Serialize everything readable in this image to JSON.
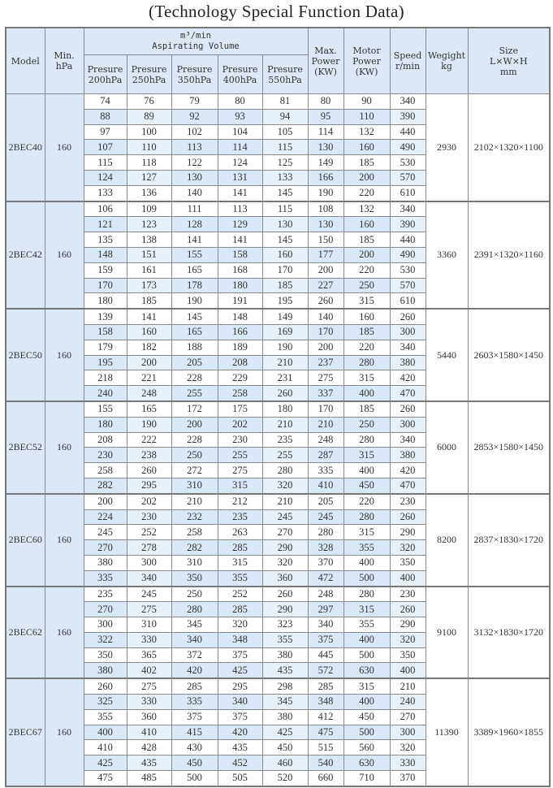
{
  "title": "(Technology Special Function Data)",
  "header": {
    "model": "Model",
    "min_hpa": [
      "Min.",
      "hPa"
    ],
    "volume_unit": "m³/min",
    "volume_label": "Aspirating Volume",
    "pressures": [
      [
        "Presure",
        "200hPa"
      ],
      [
        "Presure",
        "250hPa"
      ],
      [
        "Presure",
        "350hPa"
      ],
      [
        "Presure",
        "400hPa"
      ],
      [
        "Presure",
        "550hPa"
      ]
    ],
    "max_power": [
      "Max.",
      "Power",
      "(KW)"
    ],
    "motor_power": [
      "Motor",
      "Power",
      "(KW)"
    ],
    "speed": [
      "Speed",
      "r/min"
    ],
    "weight": [
      "Wegight",
      "kg"
    ],
    "size": [
      "Size",
      "L×W×H",
      "mm"
    ]
  },
  "colors": {
    "header_bg": "#dbe9f6",
    "row_shade": "#d8e8f6",
    "border": "#8a8a8a"
  },
  "groups": [
    {
      "model": "2BEC40",
      "min_hpa": "160",
      "weight": "2930",
      "size": "2102×1320×1100",
      "rows": [
        [
          "74",
          "76",
          "79",
          "80",
          "81",
          "80",
          "90",
          "340"
        ],
        [
          "88",
          "89",
          "92",
          "93",
          "94",
          "95",
          "110",
          "390"
        ],
        [
          "97",
          "100",
          "102",
          "104",
          "105",
          "114",
          "132",
          "440"
        ],
        [
          "107",
          "110",
          "113",
          "114",
          "115",
          "130",
          "160",
          "490"
        ],
        [
          "115",
          "118",
          "122",
          "124",
          "125",
          "149",
          "185",
          "530"
        ],
        [
          "124",
          "127",
          "130",
          "131",
          "133",
          "166",
          "200",
          "570"
        ],
        [
          "133",
          "136",
          "140",
          "141",
          "145",
          "190",
          "220",
          "610"
        ]
      ]
    },
    {
      "model": "2BEC42",
      "min_hpa": "160",
      "weight": "3360",
      "size": "2391×1320×1160",
      "rows": [
        [
          "106",
          "109",
          "111",
          "113",
          "115",
          "108",
          "132",
          "340"
        ],
        [
          "121",
          "123",
          "128",
          "129",
          "130",
          "130",
          "160",
          "390"
        ],
        [
          "135",
          "138",
          "141",
          "141",
          "145",
          "150",
          "185",
          "440"
        ],
        [
          "148",
          "151",
          "155",
          "158",
          "160",
          "177",
          "200",
          "490"
        ],
        [
          "159",
          "161",
          "165",
          "168",
          "170",
          "200",
          "220",
          "530"
        ],
        [
          "170",
          "173",
          "178",
          "180",
          "185",
          "227",
          "250",
          "570"
        ],
        [
          "180",
          "185",
          "190",
          "191",
          "195",
          "260",
          "315",
          "610"
        ]
      ]
    },
    {
      "model": "2BEC50",
      "min_hpa": "160",
      "weight": "5440",
      "size": "2603×1580×1450",
      "rows": [
        [
          "139",
          "141",
          "145",
          "148",
          "149",
          "140",
          "160",
          "260"
        ],
        [
          "158",
          "160",
          "165",
          "166",
          "169",
          "170",
          "185",
          "300"
        ],
        [
          "179",
          "182",
          "188",
          "189",
          "190",
          "200",
          "220",
          "340"
        ],
        [
          "195",
          "200",
          "205",
          "208",
          "210",
          "237",
          "280",
          "380"
        ],
        [
          "218",
          "221",
          "228",
          "229",
          "231",
          "275",
          "315",
          "420"
        ],
        [
          "240",
          "248",
          "255",
          "258",
          "260",
          "337",
          "400",
          "470"
        ]
      ]
    },
    {
      "model": "2BEC52",
      "min_hpa": "160",
      "weight": "6000",
      "size": "2853×1580×1450",
      "rows": [
        [
          "155",
          "165",
          "172",
          "175",
          "180",
          "170",
          "185",
          "260"
        ],
        [
          "180",
          "190",
          "200",
          "202",
          "210",
          "210",
          "250",
          "300"
        ],
        [
          "208",
          "222",
          "228",
          "230",
          "235",
          "248",
          "280",
          "340"
        ],
        [
          "230",
          "238",
          "250",
          "255",
          "255",
          "287",
          "315",
          "380"
        ],
        [
          "258",
          "260",
          "272",
          "275",
          "280",
          "335",
          "400",
          "420"
        ],
        [
          "282",
          "295",
          "310",
          "315",
          "320",
          "410",
          "450",
          "470"
        ]
      ]
    },
    {
      "model": "2BEC60",
      "min_hpa": "160",
      "weight": "8200",
      "size": "2837×1830×1720",
      "rows": [
        [
          "200",
          "202",
          "210",
          "212",
          "210",
          "205",
          "220",
          "230"
        ],
        [
          "224",
          "230",
          "232",
          "235",
          "245",
          "245",
          "280",
          "260"
        ],
        [
          "245",
          "252",
          "258",
          "263",
          "270",
          "280",
          "315",
          "290"
        ],
        [
          "270",
          "278",
          "282",
          "285",
          "290",
          "328",
          "355",
          "320"
        ],
        [
          "380",
          "300",
          "310",
          "315",
          "320",
          "370",
          "400",
          "350"
        ],
        [
          "335",
          "340",
          "350",
          "355",
          "360",
          "472",
          "500",
          "400"
        ]
      ]
    },
    {
      "model": "2BEC62",
      "min_hpa": "160",
      "weight": "9100",
      "size": "3132×1830×1720",
      "rows": [
        [
          "235",
          "245",
          "250",
          "252",
          "260",
          "248",
          "280",
          "230"
        ],
        [
          "270",
          "275",
          "280",
          "285",
          "290",
          "297",
          "315",
          "260"
        ],
        [
          "300",
          "310",
          "345",
          "320",
          "323",
          "340",
          "355",
          "290"
        ],
        [
          "322",
          "330",
          "340",
          "348",
          "355",
          "375",
          "400",
          "320"
        ],
        [
          "350",
          "365",
          "372",
          "375",
          "380",
          "445",
          "500",
          "350"
        ],
        [
          "380",
          "402",
          "420",
          "425",
          "435",
          "572",
          "630",
          "400"
        ]
      ]
    },
    {
      "model": "2BEC67",
      "min_hpa": "160",
      "weight": "11390",
      "size": "3389×1960×1855",
      "rows": [
        [
          "260",
          "275",
          "285",
          "295",
          "298",
          "285",
          "315",
          "210"
        ],
        [
          "325",
          "330",
          "335",
          "340",
          "345",
          "348",
          "400",
          "240"
        ],
        [
          "355",
          "360",
          "375",
          "375",
          "380",
          "412",
          "450",
          "270"
        ],
        [
          "400",
          "410",
          "415",
          "420",
          "425",
          "475",
          "500",
          "300"
        ],
        [
          "410",
          "428",
          "430",
          "435",
          "450",
          "515",
          "560",
          "320"
        ],
        [
          "425",
          "435",
          "450",
          "452",
          "460",
          "540",
          "630",
          "330"
        ],
        [
          "475",
          "485",
          "500",
          "505",
          "520",
          "660",
          "710",
          "370"
        ]
      ]
    }
  ]
}
